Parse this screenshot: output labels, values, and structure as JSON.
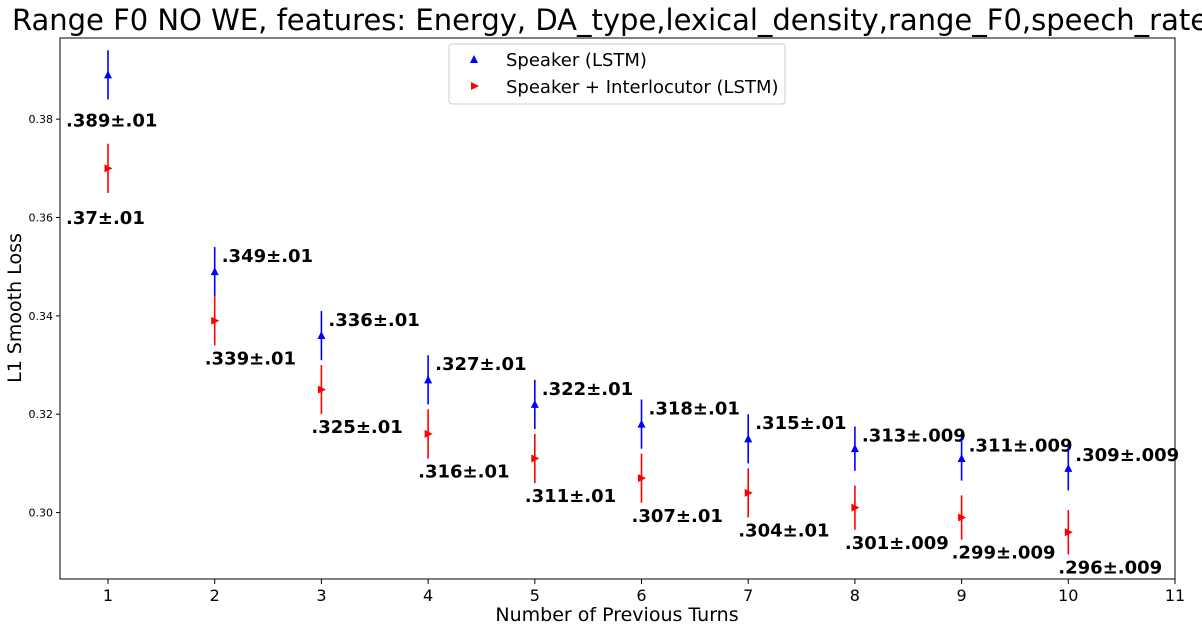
{
  "chart_data": {
    "type": "scatter",
    "title": "Range F0 NO WE, features: Energy, DA_type,lexical_density,range_F0,speech_rate",
    "xlabel": "Number of Previous Turns",
    "ylabel": "L1 Smooth Loss",
    "xlim": [
      0.55,
      11.0
    ],
    "ylim": [
      0.2865,
      0.3965
    ],
    "xticks": [
      "1",
      "2",
      "3",
      "4",
      "5",
      "6",
      "7",
      "8",
      "9",
      "10",
      "11"
    ],
    "yticks": [
      "0.30",
      "0.32",
      "0.34",
      "0.36",
      "0.38"
    ],
    "grid": false,
    "legend_position": "top-center",
    "series": [
      {
        "name": "Speaker (LSTM)",
        "color": "#0000ff",
        "marker": "triangle-up",
        "x": [
          1,
          2,
          3,
          4,
          5,
          6,
          7,
          8,
          9,
          10
        ],
        "y": [
          0.389,
          0.349,
          0.336,
          0.327,
          0.322,
          0.318,
          0.315,
          0.313,
          0.311,
          0.309
        ],
        "err": [
          0.005,
          0.005,
          0.005,
          0.005,
          0.005,
          0.005,
          0.005,
          0.0045,
          0.0045,
          0.0045
        ],
        "labels": [
          ".389±.01",
          ".349±.01",
          ".336±.01",
          ".327±.01",
          ".322±.01",
          ".318±.01",
          ".315±.01",
          ".313±.009",
          ".311±.009",
          ".309±.009"
        ]
      },
      {
        "name": "Speaker + Interlocutor (LSTM)",
        "color": "#ff0000",
        "marker": "triangle-right",
        "x": [
          1,
          2,
          3,
          4,
          5,
          6,
          7,
          8,
          9,
          10
        ],
        "y": [
          0.37,
          0.339,
          0.325,
          0.316,
          0.311,
          0.307,
          0.304,
          0.301,
          0.299,
          0.296
        ],
        "err": [
          0.005,
          0.005,
          0.005,
          0.005,
          0.005,
          0.005,
          0.005,
          0.0045,
          0.0045,
          0.0045
        ],
        "labels": [
          ".37±.01",
          ".339±.01",
          ".325±.01",
          ".316±.01",
          ".311±.01",
          ".307±.01",
          ".304±.01",
          ".301±.009",
          ".299±.009",
          ".296±.009"
        ]
      }
    ]
  }
}
